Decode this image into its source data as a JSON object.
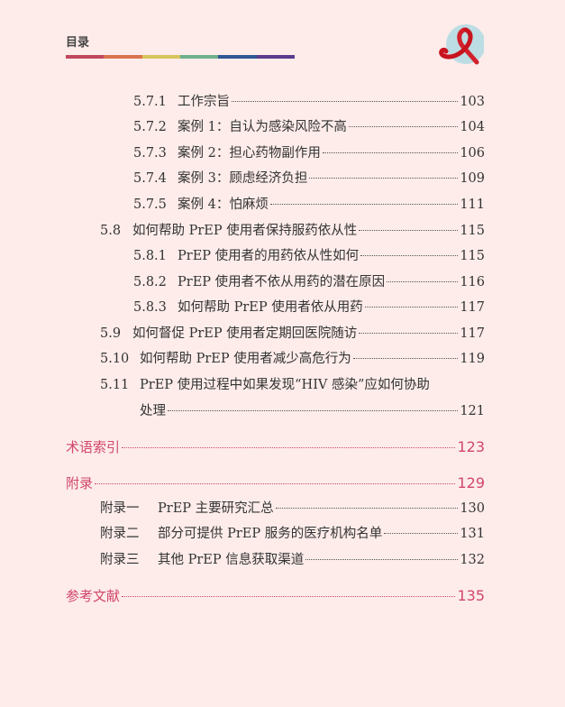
{
  "header": {
    "title": "目录",
    "rainbow_colors": [
      "#c0485e",
      "#d9744f",
      "#d8c45c",
      "#6fb08c",
      "#2f5894",
      "#5b3b8c"
    ],
    "logo_icon": "red-ribbon-icon"
  },
  "entries": [
    {
      "num": "5.7.1",
      "title": "工作宗旨",
      "page": "103",
      "level": 3
    },
    {
      "num": "5.7.2",
      "title": "案例 1：自认为感染风险不高",
      "page": "104",
      "level": 3
    },
    {
      "num": "5.7.3",
      "title": "案例 2：担心药物副作用",
      "page": "106",
      "level": 3
    },
    {
      "num": "5.7.4",
      "title": "案例 3：顾虑经济负担",
      "page": "109",
      "level": 3
    },
    {
      "num": "5.7.5",
      "title": "案例 4：怕麻烦",
      "page": "111",
      "level": 3
    },
    {
      "num": "5.8",
      "title": "如何帮助 PrEP 使用者保持服药依从性",
      "page": "115",
      "level": 2
    },
    {
      "num": "5.8.1",
      "title": "PrEP 使用者的用药依从性如何",
      "page": "115",
      "level": 3
    },
    {
      "num": "5.8.2",
      "title": "PrEP 使用者不依从用药的潜在原因",
      "page": "116",
      "level": 3
    },
    {
      "num": "5.8.3",
      "title": "如何帮助 PrEP 使用者依从用药",
      "page": "117",
      "level": 3
    },
    {
      "num": "5.9",
      "title": "如何督促 PrEP 使用者定期回医院随访",
      "page": "117",
      "level": 2
    },
    {
      "num": "5.10",
      "title": "如何帮助 PrEP 使用者减少高危行为",
      "page": "119",
      "level": 2
    },
    {
      "num": "5.11",
      "title": "PrEP 使用过程中如果发现“HIV 感染”应如何协助",
      "title_cont": "处理",
      "page": "121",
      "level": 2
    },
    {
      "num": "",
      "title": "术语索引",
      "page": "123",
      "level": 1
    },
    {
      "num": "",
      "title": "附录",
      "page": "129",
      "level": 1
    },
    {
      "num": "附录一",
      "title": "PrEP 主要研究汇总",
      "page": "130",
      "level": 4
    },
    {
      "num": "附录二",
      "title": "部分可提供 PrEP 服务的医疗机构名单",
      "page": "131",
      "level": 4
    },
    {
      "num": "附录三",
      "title": "其他 PrEP 信息获取渠道",
      "page": "132",
      "level": 4
    },
    {
      "num": "",
      "title": "参考文献",
      "page": "135",
      "level": 1
    }
  ]
}
